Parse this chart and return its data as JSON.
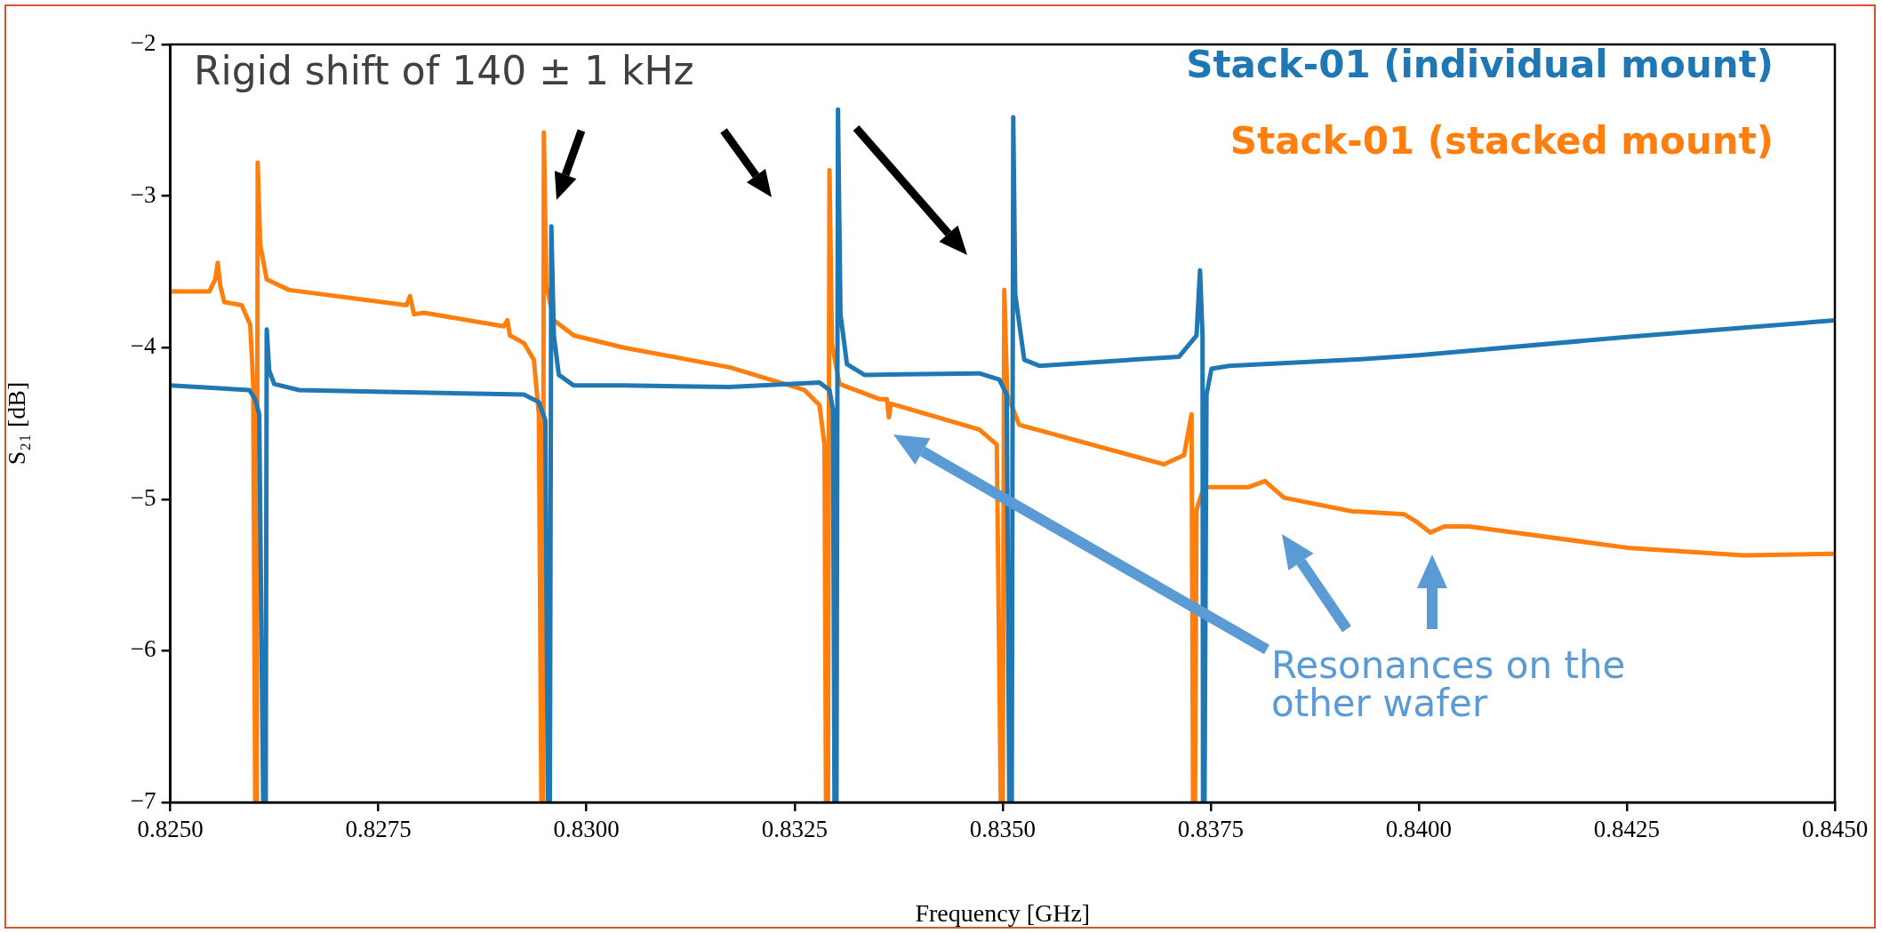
{
  "chart_data": {
    "type": "line",
    "xlabel": "Frequency [GHz]",
    "ylabel": "S₂₁ [dB]",
    "xlim": [
      0.825,
      0.845
    ],
    "ylim": [
      -7,
      -2
    ],
    "xticks": [
      {
        "value": 0.825,
        "label": "0.8250"
      },
      {
        "value": 0.8275,
        "label": "0.8275"
      },
      {
        "value": 0.83,
        "label": "0.8300"
      },
      {
        "value": 0.8325,
        "label": "0.8325"
      },
      {
        "value": 0.835,
        "label": "0.8350"
      },
      {
        "value": 0.8375,
        "label": "0.8375"
      },
      {
        "value": 0.84,
        "label": "0.8400"
      },
      {
        "value": 0.8425,
        "label": "0.8425"
      },
      {
        "value": 0.845,
        "label": "0.8450"
      }
    ],
    "yticks": [
      {
        "value": -7,
        "label": "−7"
      },
      {
        "value": -6,
        "label": "−6"
      },
      {
        "value": -5,
        "label": "−5"
      },
      {
        "value": -4,
        "label": "−4"
      },
      {
        "value": -3,
        "label": "−3"
      },
      {
        "value": -2,
        "label": "−2"
      }
    ],
    "legend": "top right",
    "marker": "none",
    "annotations": [
      "Rigid shift of 140 ± 1 kHz",
      "Resonances on the other wafer"
    ],
    "series": [
      {
        "name": "Stack-01 (individual mount)",
        "color": "#1f77b4",
        "x": [
          0.825,
          0.825948,
          0.82602,
          0.826068,
          0.826116,
          0.826146,
          0.826158,
          0.826188,
          0.826248,
          0.826548,
          0.827448,
          0.829248,
          0.829428,
          0.829506,
          0.829536,
          0.82956,
          0.829578,
          0.829608,
          0.829668,
          0.829848,
          0.830448,
          0.83172,
          0.8328,
          0.83292,
          0.832962,
          0.83298,
          0.833004,
          0.833022,
          0.833052,
          0.83313,
          0.83334,
          0.83472,
          0.83496,
          0.83505,
          0.83508,
          0.83511,
          0.835128,
          0.835152,
          0.83526,
          0.83544,
          0.83712,
          0.83733,
          0.837372,
          0.837402,
          0.837408,
          0.837426,
          0.83745,
          0.83751,
          0.83772,
          0.839201,
          0.84,
          0.8425,
          0.845
        ],
        "values": [
          -4.25,
          -4.28,
          -4.34,
          -4.44,
          -7,
          -7,
          -3.88,
          -4.15,
          -4.24,
          -4.28,
          -4.29,
          -4.31,
          -4.36,
          -4.48,
          -7,
          -7,
          -3.2,
          -3.92,
          -4.18,
          -4.25,
          -4.25,
          -4.26,
          -4.23,
          -4.28,
          -4.41,
          -7,
          -7,
          -2.43,
          -3.78,
          -4.11,
          -4.18,
          -4.17,
          -4.21,
          -4.31,
          -7,
          -7,
          -2.48,
          -3.65,
          -4.08,
          -4.12,
          -4.06,
          -3.92,
          -3.49,
          -3.92,
          -7,
          -7,
          -4.31,
          -4.14,
          -4.12,
          -4.08,
          -4.05,
          -3.93,
          -3.82
        ]
      },
      {
        "name": "Stack-01 (stacked mount)",
        "color": "#ff7f0e",
        "x": [
          0.825,
          0.825468,
          0.82554,
          0.82557,
          0.8256,
          0.825648,
          0.825858,
          0.82596,
          0.825996,
          0.82602,
          0.826038,
          0.82605,
          0.82608,
          0.826158,
          0.826428,
          0.827838,
          0.82788,
          0.827928,
          0.828048,
          0.829008,
          0.82905,
          0.82908,
          0.829248,
          0.829368,
          0.829428,
          0.829458,
          0.829476,
          0.829488,
          0.829518,
          0.829608,
          0.829848,
          0.830448,
          0.83172,
          0.83262,
          0.8328,
          0.83286,
          0.832878,
          0.832902,
          0.83292,
          0.83295,
          0.83304,
          0.83352,
          0.83361,
          0.833634,
          0.833658,
          0.83472,
          0.83493,
          0.834978,
          0.835002,
          0.83502,
          0.835056,
          0.8352,
          0.83694,
          0.83718,
          0.83727,
          0.837288,
          0.837312,
          0.83733,
          0.83742,
          0.83796,
          0.838152,
          0.83838,
          0.839201,
          0.839826,
          0.839976,
          0.840138,
          0.840306,
          0.840606,
          0.842502,
          0.843906,
          0.845
        ],
        "values": [
          -3.63,
          -3.63,
          -3.55,
          -3.44,
          -3.59,
          -3.7,
          -3.72,
          -3.85,
          -4.24,
          -7,
          -7,
          -2.78,
          -3.32,
          -3.55,
          -3.62,
          -3.72,
          -3.66,
          -3.78,
          -3.77,
          -3.86,
          -3.82,
          -3.92,
          -3.97,
          -4.08,
          -4.44,
          -7,
          -7,
          -2.58,
          -3.59,
          -3.82,
          -3.92,
          -4.0,
          -4.13,
          -4.28,
          -4.38,
          -4.64,
          -7,
          -7,
          -2.83,
          -3.98,
          -4.24,
          -4.34,
          -4.34,
          -4.46,
          -4.37,
          -4.54,
          -4.64,
          -7,
          -7,
          -3.62,
          -4.31,
          -4.51,
          -4.77,
          -4.71,
          -4.44,
          -7,
          -7,
          -5.07,
          -4.92,
          -4.92,
          -4.88,
          -4.99,
          -5.08,
          -5.1,
          -5.15,
          -5.22,
          -5.18,
          -5.18,
          -5.32,
          -5.37,
          -5.36
        ]
      }
    ]
  }
}
